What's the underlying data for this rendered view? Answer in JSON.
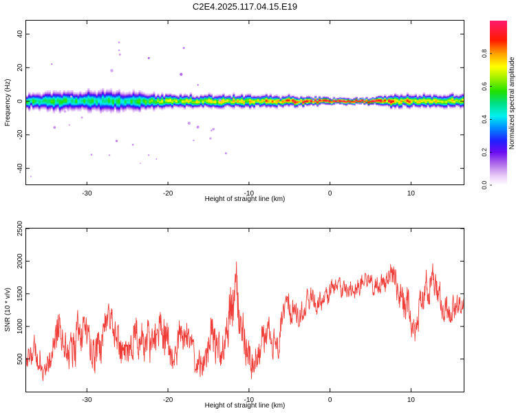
{
  "title": "C2E4.2025.117.04.15.E19",
  "colors": {
    "snr_line": "#ef3a35",
    "frame": "#000000",
    "background": "#ffffff"
  },
  "chart_data": [
    {
      "type": "heatmap",
      "title": "C2E4.2025.117.04.15.E19",
      "xlabel": "Height of straight line (km)",
      "ylabel": "Frequency (Hz)",
      "xlim": [
        -37.5,
        16.5
      ],
      "ylim": [
        -50,
        48
      ],
      "x_ticks": [
        -30,
        -20,
        -10,
        0,
        10
      ],
      "y_ticks": [
        -40,
        -20,
        0,
        20,
        40
      ],
      "grid": false,
      "colorbar": {
        "label": "Normalized spectral amplitude",
        "range": [
          0,
          1
        ],
        "ticks": [
          "0.0",
          "0.2",
          "0.4",
          "0.6",
          "0.8"
        ],
        "colormap": "rainbow (white-violet-blue-cyan-green-yellow-orange-red-magenta)"
      },
      "ridge": {
        "description": "narrow band of high amplitude centred near 0 Hz across the full height range",
        "center_freq_hz": 0,
        "profile": [
          {
            "x": -37,
            "halfwidth": 4,
            "peak": 0.55
          },
          {
            "x": -30,
            "halfwidth": 5,
            "peak": 0.5
          },
          {
            "x": -25,
            "halfwidth": 5,
            "peak": 0.5
          },
          {
            "x": -20,
            "halfwidth": 3.5,
            "peak": 0.65
          },
          {
            "x": -15,
            "halfwidth": 3,
            "peak": 0.7
          },
          {
            "x": -10,
            "halfwidth": 3,
            "peak": 0.72
          },
          {
            "x": -5,
            "halfwidth": 2.5,
            "peak": 0.85
          },
          {
            "x": 0,
            "halfwidth": 1.5,
            "peak": 0.97
          },
          {
            "x": 5,
            "halfwidth": 1.5,
            "peak": 0.97
          },
          {
            "x": 8,
            "halfwidth": 3,
            "peak": 0.8
          },
          {
            "x": 12,
            "halfwidth": 3,
            "peak": 0.75
          },
          {
            "x": 16.5,
            "halfwidth": 3,
            "peak": 0.7
          }
        ]
      }
    },
    {
      "type": "line",
      "xlabel": "Height of straight line (km)",
      "ylabel": "SNR (10 * v/v)",
      "xlim": [
        -37.5,
        16.5
      ],
      "ylim": [
        0,
        2500
      ],
      "x_ticks": [
        -30,
        -20,
        -10,
        0,
        10
      ],
      "y_ticks": [
        500,
        1000,
        1500,
        2000,
        2500
      ],
      "grid": false,
      "series": [
        {
          "color": "#ef3a35",
          "x": [
            -37.5,
            -36.5,
            -35.5,
            -34.5,
            -33.5,
            -32.5,
            -31.5,
            -30.5,
            -29.5,
            -28.5,
            -27.5,
            -26.5,
            -25.5,
            -24.5,
            -23.5,
            -22.5,
            -21.5,
            -20.5,
            -19.5,
            -18.5,
            -17.5,
            -16.5,
            -15.5,
            -14.5,
            -13.5,
            -12.5,
            -11.5,
            -10.5,
            -9.5,
            -8.5,
            -7.5,
            -6.5,
            -5.5,
            -4.5,
            -3.5,
            -2.5,
            -1.5,
            -0.5,
            0.5,
            1.5,
            2.5,
            3.5,
            4.5,
            5.5,
            6.5,
            7.5,
            8.5,
            9.5,
            10.5,
            11.5,
            12.5,
            13.5,
            14.5,
            15.5,
            16.5
          ],
          "values": [
            400,
            550,
            500,
            600,
            900,
            650,
            800,
            850,
            700,
            750,
            1000,
            900,
            750,
            600,
            800,
            900,
            700,
            850,
            600,
            850,
            700,
            550,
            400,
            700,
            650,
            1200,
            1250,
            850,
            500,
            600,
            900,
            800,
            1200,
            1200,
            1300,
            1400,
            1300,
            1500,
            1650,
            1500,
            1600,
            1550,
            1700,
            1700,
            1650,
            1700,
            1600,
            1400,
            700,
            1600,
            1900,
            1300,
            1200,
            1400,
            1300
          ],
          "amplitude": [
            350,
            320,
            380,
            360,
            600,
            400,
            600,
            520,
            560,
            500,
            420,
            450,
            600,
            520,
            480,
            520,
            560,
            650,
            400,
            430,
            450,
            320,
            380,
            600,
            430,
            700,
            720,
            550,
            420,
            420,
            380,
            420,
            380,
            350,
            320,
            300,
            280,
            260,
            250,
            240,
            250,
            240,
            230,
            240,
            260,
            350,
            450,
            500,
            350,
            550,
            600,
            450,
            380,
            330,
            330
          ]
        }
      ]
    }
  ]
}
